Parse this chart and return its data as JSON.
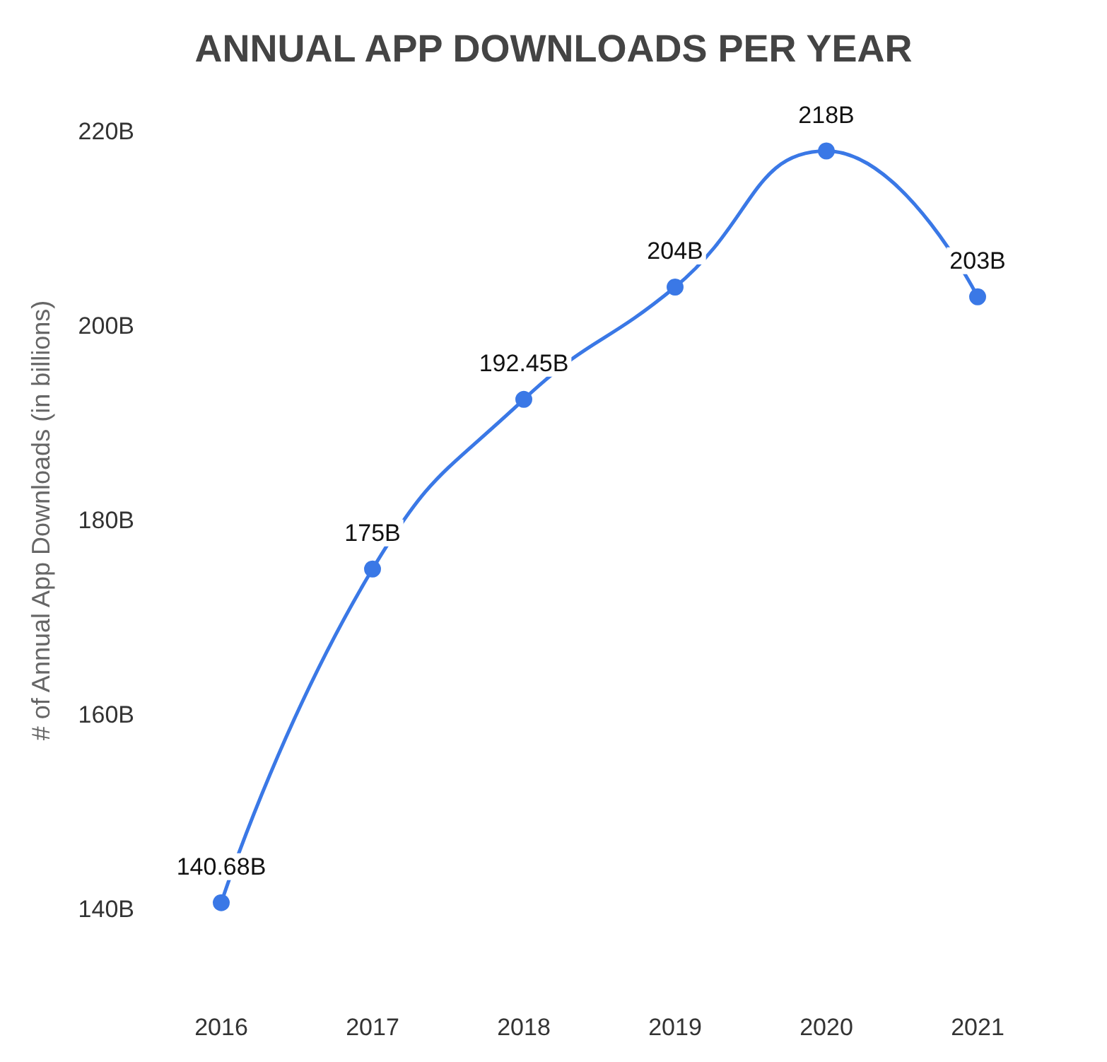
{
  "chart_data": {
    "type": "line",
    "title": "ANNUAL APP DOWNLOADS PER YEAR",
    "ylabel": "# of Annual App Downloads (in billions)",
    "categories": [
      "2016",
      "2017",
      "2018",
      "2019",
      "2020",
      "2021"
    ],
    "series": [
      {
        "color": "#3a78e6",
        "values": [
          140.68,
          175,
          192.45,
          204,
          218,
          203
        ],
        "value_labels": [
          "140.68B",
          "175B",
          "192.45B",
          "204B",
          "218B",
          "203B"
        ]
      }
    ],
    "ylim": [
      140,
      220
    ],
    "yticks": [
      {
        "value": 140,
        "label": "140B"
      },
      {
        "value": 160,
        "label": "160B"
      },
      {
        "value": 180,
        "label": "180B"
      },
      {
        "value": 200,
        "label": "200B"
      },
      {
        "value": 220,
        "label": "220B"
      }
    ],
    "grid": false,
    "marker": "circle",
    "line_style": "solid"
  }
}
